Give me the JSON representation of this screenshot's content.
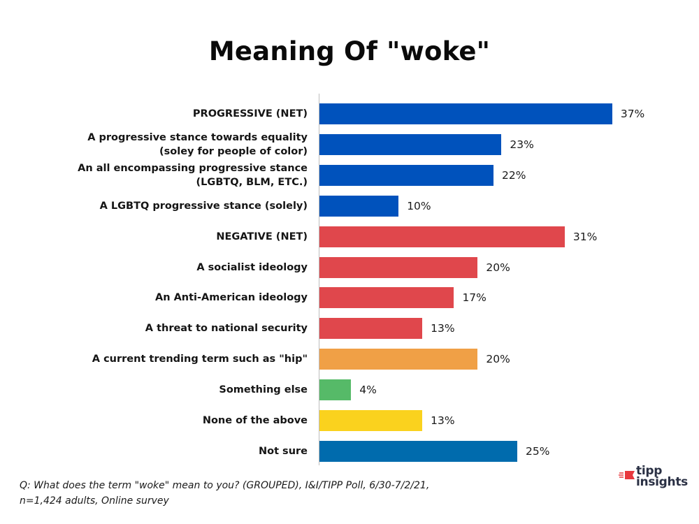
{
  "chart_data": {
    "type": "bar",
    "orientation": "horizontal",
    "title": "Meaning Of \"woke\"",
    "xlabel": "",
    "ylabel": "",
    "xlim": [
      0,
      40
    ],
    "grid": false,
    "legend": null,
    "value_format": "percent",
    "categories": [
      "PROGRESSIVE (NET)",
      "A progressive stance towards equality (soley for people of color)",
      "An all encompassing progressive stance (LGBTQ, BLM, ETC.)",
      "A LGBTQ progressive stance (solely)",
      "NEGATIVE (NET)",
      "A socialist ideology",
      "An Anti-American ideology",
      "A threat to national security",
      "A current trending term such as \"hip\"",
      "Something else",
      "None of the above",
      "Not sure"
    ],
    "values": [
      37,
      23,
      22,
      10,
      31,
      20,
      17,
      13,
      20,
      4,
      13,
      25
    ],
    "bars": [
      {
        "label_lines": [
          "PROGRESSIVE (NET)"
        ],
        "value": 37,
        "value_label": "37%",
        "color": "#0052BC"
      },
      {
        "label_lines": [
          "A progressive stance towards equality",
          "(soley for people of color)"
        ],
        "value": 23,
        "value_label": "23%",
        "color": "#0052BC"
      },
      {
        "label_lines": [
          "An all encompassing progressive stance",
          "(LGBTQ, BLM, ETC.)"
        ],
        "value": 22,
        "value_label": "22%",
        "color": "#0052BC"
      },
      {
        "label_lines": [
          "A LGBTQ progressive stance (solely)"
        ],
        "value": 10,
        "value_label": "10%",
        "color": "#0052BC"
      },
      {
        "label_lines": [
          "NEGATIVE (NET)"
        ],
        "value": 31,
        "value_label": "31%",
        "color": "#E0474C"
      },
      {
        "label_lines": [
          "A socialist ideology"
        ],
        "value": 20,
        "value_label": "20%",
        "color": "#E0474C"
      },
      {
        "label_lines": [
          "An Anti-American ideology"
        ],
        "value": 17,
        "value_label": "17%",
        "color": "#E0474C"
      },
      {
        "label_lines": [
          "A threat to national security"
        ],
        "value": 13,
        "value_label": "13%",
        "color": "#E0474C"
      },
      {
        "label_lines": [
          "A current trending term such as \"hip\""
        ],
        "value": 20,
        "value_label": "20%",
        "color": "#F0A046"
      },
      {
        "label_lines": [
          "Something else"
        ],
        "value": 4,
        "value_label": "4%",
        "color": "#56BA68"
      },
      {
        "label_lines": [
          "None of the above"
        ],
        "value": 13,
        "value_label": "13%",
        "color": "#FAD21E"
      },
      {
        "label_lines": [
          "Not sure"
        ],
        "value": 25,
        "value_label": "25%",
        "color": "#006BAD"
      }
    ]
  },
  "footnote": {
    "line1": "Q:  What does the term \"woke\" mean to you? (GROUPED), I&I/TIPP Poll, 6/30-7/2/21,",
    "line2": "n=1,424 adults, Online survey"
  },
  "logo": {
    "line1": "tipp",
    "line2": "insights",
    "accent_color": "#E8383D",
    "text_color": "#2A3044"
  }
}
